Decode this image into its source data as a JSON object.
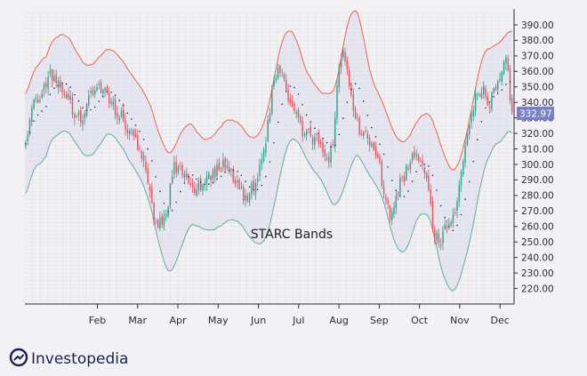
{
  "brand": {
    "name": "Investopedia",
    "logo_icon": "investopedia-logo-icon"
  },
  "chart_data": {
    "type": "candlestick",
    "title": "STARC Bands",
    "xlabel": "",
    "ylabel": "",
    "ylim": [
      210,
      398
    ],
    "y_ticks": [
      220,
      230,
      240,
      250,
      260,
      270,
      280,
      290,
      300,
      310,
      320,
      330,
      340,
      350,
      360,
      370,
      380,
      390
    ],
    "y_tick_labels": [
      "220.00",
      "230.00",
      "240.00",
      "250.00",
      "260.00",
      "270.00",
      "280.00",
      "290.00",
      "300.00",
      "310.00",
      "320.00",
      "330.00",
      "340.00",
      "350.00",
      "360.00",
      "370.00",
      "380.00",
      "390.00"
    ],
    "x_axis": "months",
    "month_ticks": [
      {
        "label": "Feb",
        "t": 1.0
      },
      {
        "label": "Mar",
        "t": 2.0
      },
      {
        "label": "Apr",
        "t": 3.0
      },
      {
        "label": "May",
        "t": 4.0
      },
      {
        "label": "Jun",
        "t": 5.0
      },
      {
        "label": "Jul",
        "t": 6.0
      },
      {
        "label": "Aug",
        "t": 7.0
      },
      {
        "label": "Sep",
        "t": 8.0
      },
      {
        "label": "Oct",
        "t": 9.0
      },
      {
        "label": "Nov",
        "t": 10.0
      },
      {
        "label": "Dec",
        "t": 11.0
      }
    ],
    "t_range": [
      -0.8,
      11.35
    ],
    "close_path": [
      [
        -0.78,
        318
      ],
      [
        -0.6,
        338
      ],
      [
        -0.4,
        345
      ],
      [
        -0.2,
        360
      ],
      [
        0,
        350
      ],
      [
        0.2,
        348
      ],
      [
        0.4,
        332
      ],
      [
        0.6,
        328
      ],
      [
        0.8,
        345
      ],
      [
        1.0,
        352
      ],
      [
        1.2,
        345
      ],
      [
        1.4,
        338
      ],
      [
        1.6,
        330
      ],
      [
        1.8,
        322
      ],
      [
        2.0,
        312
      ],
      [
        2.15,
        300
      ],
      [
        2.3,
        280
      ],
      [
        2.45,
        262
      ],
      [
        2.6,
        262
      ],
      [
        2.75,
        275
      ],
      [
        2.9,
        300
      ],
      [
        3.05,
        295
      ],
      [
        3.2,
        290
      ],
      [
        3.4,
        285
      ],
      [
        3.6,
        288
      ],
      [
        3.8,
        293
      ],
      [
        4.0,
        298
      ],
      [
        4.15,
        300
      ],
      [
        4.3,
        295
      ],
      [
        4.5,
        288
      ],
      [
        4.65,
        278
      ],
      [
        4.8,
        283
      ],
      [
        4.95,
        290
      ],
      [
        5.05,
        300
      ],
      [
        5.2,
        320
      ],
      [
        5.35,
        348
      ],
      [
        5.5,
        365
      ],
      [
        5.65,
        352
      ],
      [
        5.8,
        338
      ],
      [
        5.95,
        330
      ],
      [
        6.1,
        322
      ],
      [
        6.25,
        318
      ],
      [
        6.4,
        315
      ],
      [
        6.55,
        318
      ],
      [
        6.7,
        300
      ],
      [
        6.85,
        312
      ],
      [
        7.0,
        365
      ],
      [
        7.1,
        376
      ],
      [
        7.25,
        350
      ],
      [
        7.4,
        332
      ],
      [
        7.55,
        320
      ],
      [
        7.7,
        318
      ],
      [
        7.85,
        308
      ],
      [
        8.0,
        300
      ],
      [
        8.15,
        278
      ],
      [
        8.3,
        265
      ],
      [
        8.45,
        285
      ],
      [
        8.6,
        292
      ],
      [
        8.75,
        300
      ],
      [
        8.9,
        310
      ],
      [
        9.05,
        298
      ],
      [
        9.2,
        288
      ],
      [
        9.35,
        255
      ],
      [
        9.5,
        250
      ],
      [
        9.65,
        258
      ],
      [
        9.8,
        265
      ],
      [
        9.95,
        275
      ],
      [
        10.1,
        305
      ],
      [
        10.25,
        330
      ],
      [
        10.4,
        345
      ],
      [
        10.55,
        350
      ],
      [
        10.7,
        338
      ],
      [
        10.85,
        345
      ],
      [
        11.0,
        355
      ],
      [
        11.15,
        368
      ],
      [
        11.3,
        333
      ]
    ],
    "series": [
      {
        "name": "",
        "role": "upper_band",
        "color": "#e8705a"
      },
      {
        "name": "",
        "role": "lower_band",
        "color": "#6fb0a8"
      },
      {
        "name": "",
        "role": "moving_average",
        "color": "#1e2a55"
      }
    ],
    "candle_colors": {
      "up": "#2f9d8a",
      "down": "#e8505a"
    },
    "band_fill": "#dcdcec",
    "last_price": {
      "label": "332.97",
      "value": 332.97,
      "color": "#7781c4"
    },
    "grid": true,
    "legend": "none"
  }
}
